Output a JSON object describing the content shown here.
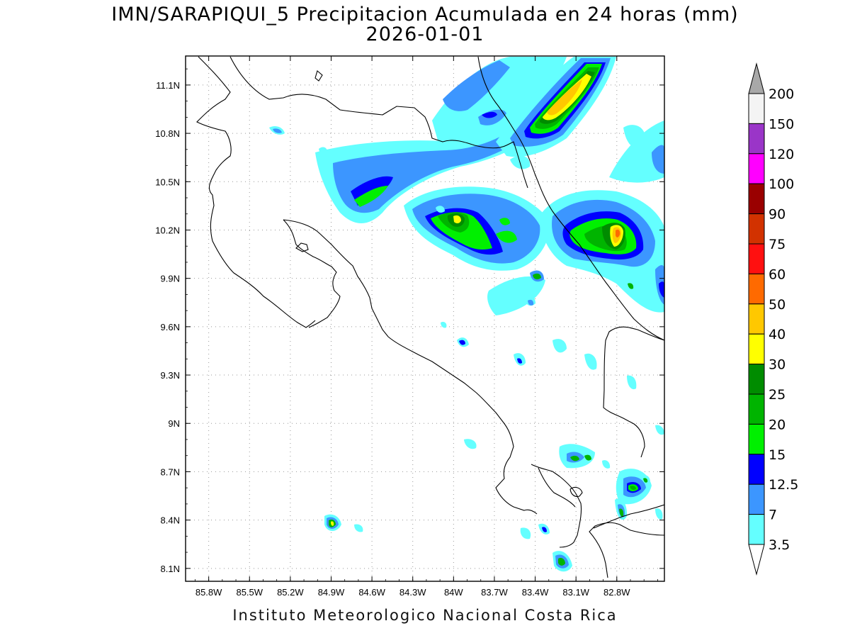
{
  "title": {
    "line1": "IMN/SARAPIQUI_5 Precipitacion Acumulada en 24 horas (mm)",
    "line2": "2026-01-01"
  },
  "footer": "Instituto Meteorologico Nacional Costa Rica",
  "map": {
    "lon_ticks": [
      "85.8W",
      "85.5W",
      "85.2W",
      "84.9W",
      "84.6W",
      "84.3W",
      "84W",
      "83.7W",
      "83.4W",
      "83.1W",
      "82.8W"
    ],
    "lat_ticks": [
      "11.1N",
      "10.8N",
      "10.5N",
      "10.2N",
      "9.9N",
      "9.6N",
      "9.3N",
      "9N",
      "8.7N",
      "8.4N",
      "8.1N"
    ],
    "lon_range": [
      -85.97,
      -82.45
    ],
    "lat_range": [
      8.02,
      11.28
    ],
    "grid": true
  },
  "colorbar": {
    "levels": [
      "200",
      "150",
      "120",
      "100",
      "90",
      "75",
      "60",
      "50",
      "40",
      "30",
      "25",
      "20",
      "15",
      "12.5",
      "7",
      "3.5"
    ],
    "colors": [
      "#a8a8a8",
      "#f4f4f4",
      "#9a35c8",
      "#ff00ff",
      "#9a0000",
      "#d23200",
      "#ff1010",
      "#ff6a00",
      "#ffc800",
      "#ffff00",
      "#008c00",
      "#00b400",
      "#00f000",
      "#0000ff",
      "#3c96ff",
      "#64ffff",
      "#ffffff"
    ]
  },
  "precip_colors": {
    "c3_5": "#64ffff",
    "c7": "#3c96ff",
    "c12_5": "#0000ff",
    "c15": "#00f000",
    "c20": "#00b400",
    "c25": "#008c00",
    "c30": "#ffff00",
    "c40": "#ffc800",
    "c50": "#ff6a00",
    "c60": "#ff1010"
  }
}
